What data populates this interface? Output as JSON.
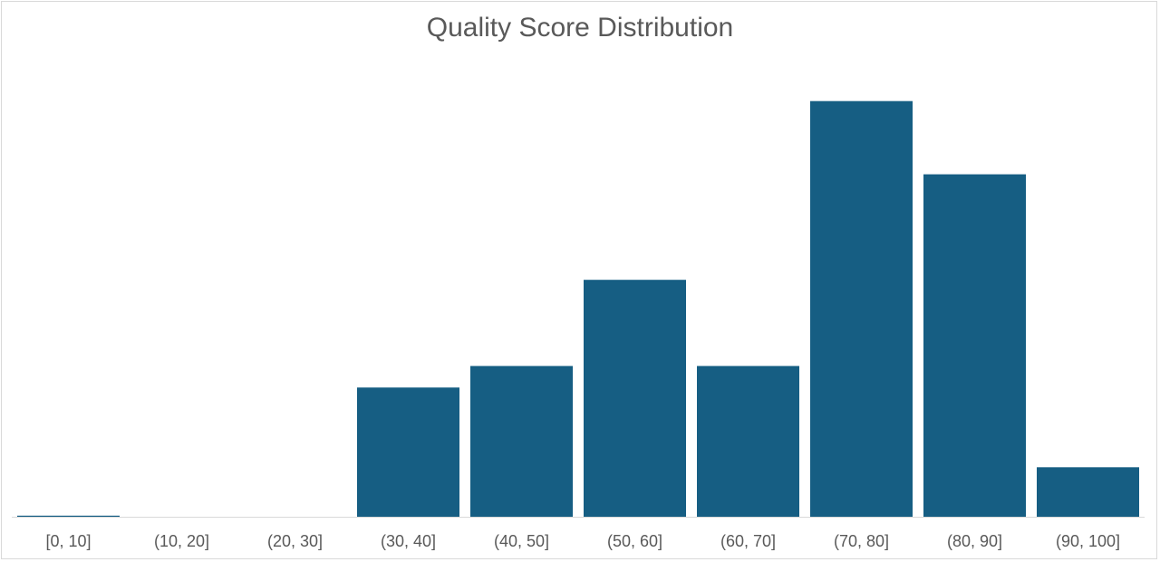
{
  "chart_data": {
    "type": "bar",
    "title": "Quality Score Distribution",
    "xlabel": "",
    "ylabel": "",
    "categories": [
      "[0, 10]",
      "(10, 20]",
      "(20, 30]",
      "(30, 40]",
      "(40, 50]",
      "(50, 60]",
      "(60, 70]",
      "(70, 80]",
      "(80, 90]",
      "(90, 100]"
    ],
    "values": [
      0.05,
      0,
      0,
      6,
      7,
      11,
      7,
      19.3,
      15.9,
      2.3
    ],
    "ylim": [
      0,
      20
    ],
    "grid": false,
    "legend": "none",
    "bar_color": "#165e83",
    "axis_color": "#d9d9d9"
  }
}
